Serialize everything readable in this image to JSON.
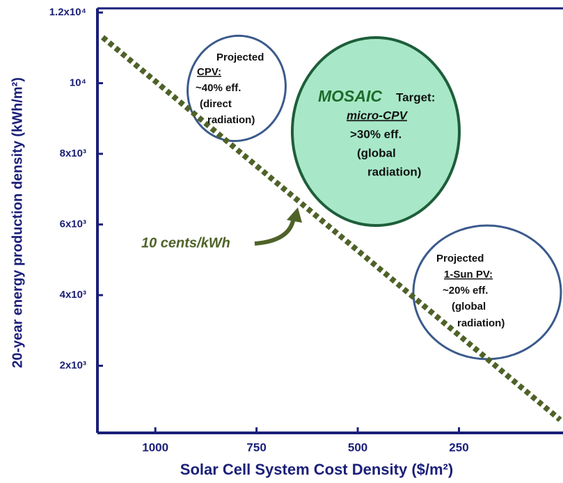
{
  "chart_data": {
    "type": "line",
    "x_label": "Solar Cell System Cost Density ($/m²)",
    "y_label": "20-year energy production density (kWh/m²)",
    "xlim": [
      1143,
      -7
    ],
    "ylim": [
      100,
      12000
    ],
    "xticks": [
      1000,
      750,
      500,
      250
    ],
    "yticks": [
      {
        "value": 2000,
        "label": "2x10³"
      },
      {
        "value": 4000,
        "label": "4x10³"
      },
      {
        "value": 6000,
        "label": "6x10³"
      },
      {
        "value": 8000,
        "label": "8x10³"
      },
      {
        "value": 10000,
        "label": "10⁴"
      },
      {
        "value": 12000,
        "label": "1.2x10⁴"
      }
    ],
    "series": [
      {
        "name": "10 cents/kWh",
        "color": "#4f6228",
        "x": [
          1130,
          0
        ],
        "values": [
          11300,
          470
        ]
      }
    ],
    "annotations": [
      {
        "lines": [
          "Projected",
          "CPV:",
          "~40% eff.",
          "(direct",
          "radiation)"
        ]
      },
      {
        "lines": [
          "MOSAIC",
          "Target:",
          "micro-CPV",
          ">30% eff.",
          "(global",
          "radiation)"
        ]
      },
      {
        "lines": [
          "Projected",
          "1-Sun PV:",
          "~20% eff.",
          "(global",
          "radiation)"
        ]
      }
    ]
  }
}
